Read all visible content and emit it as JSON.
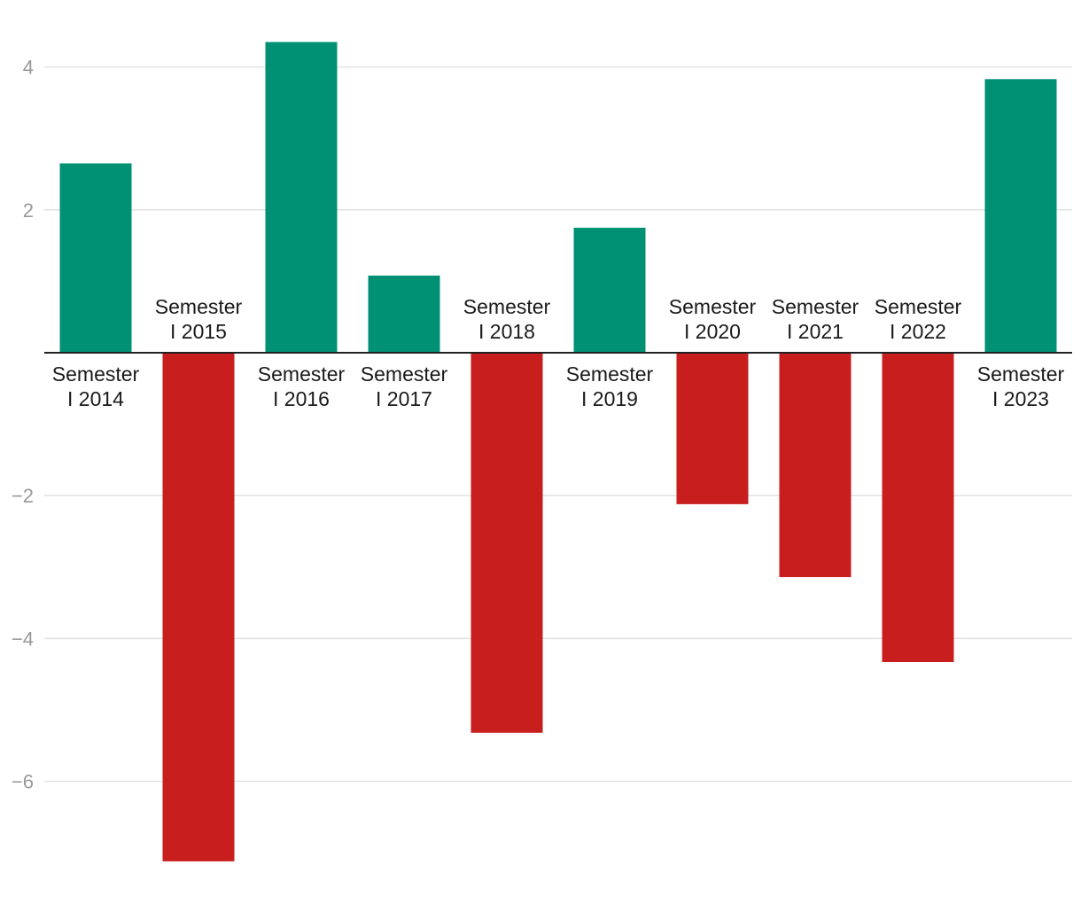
{
  "chart_data": {
    "type": "bar",
    "title": "",
    "xlabel": "",
    "ylabel": "",
    "categories": [
      [
        "Semester",
        "I 2014"
      ],
      [
        "Semester",
        "I 2015"
      ],
      [
        "Semester",
        "I 2016"
      ],
      [
        "Semester",
        "I 2017"
      ],
      [
        "Semester",
        "I 2018"
      ],
      [
        "Semester",
        "I 2019"
      ],
      [
        "Semester",
        "I 2020"
      ],
      [
        "Semester",
        "I 2021"
      ],
      [
        "Semester",
        "I 2022"
      ],
      [
        "Semester",
        "I 2023"
      ]
    ],
    "values": [
      2.65,
      -7.12,
      4.35,
      1.08,
      -5.32,
      1.75,
      -2.12,
      -3.14,
      -4.33,
      3.83
    ],
    "ylim": [
      -7.4,
      4.7
    ],
    "yticks": [
      4,
      2,
      -2,
      -4,
      -6
    ],
    "ytick_labels": [
      "4",
      "2",
      "−2",
      "−4",
      "−6"
    ],
    "grid": true,
    "legend": "none",
    "colors": {
      "positive": "#009175",
      "negative": "#c81e1e"
    }
  }
}
